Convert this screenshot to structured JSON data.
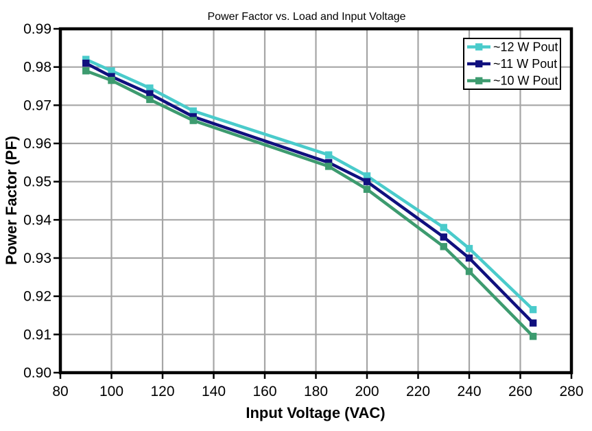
{
  "chart_data": {
    "type": "line",
    "title": "Power Factor vs. Load and Input Voltage",
    "xlabel": "Input Voltage (VAC)",
    "ylabel": "Power Factor (PF)",
    "xlim": [
      80,
      280
    ],
    "ylim": [
      0.9,
      0.99
    ],
    "x_ticks": [
      80,
      100,
      120,
      140,
      160,
      180,
      200,
      220,
      240,
      260,
      280
    ],
    "x_tick_labels": [
      "80",
      "100",
      "120",
      "140",
      "160",
      "180",
      "200",
      "220",
      "240",
      "260",
      "280"
    ],
    "y_ticks": [
      0.9,
      0.91,
      0.92,
      0.93,
      0.94,
      0.95,
      0.96,
      0.97,
      0.98,
      0.99
    ],
    "y_tick_labels": [
      "0.90",
      "0.91",
      "0.92",
      "0.93",
      "0.94",
      "0.95",
      "0.96",
      "0.97",
      "0.98",
      "0.99"
    ],
    "grid": true,
    "legend_position": "top-right",
    "x": [
      90,
      100,
      115,
      132,
      185,
      200,
      230,
      240,
      265
    ],
    "series": [
      {
        "name": "~12 W Pout",
        "color": "#4ACBCB",
        "values": [
          0.982,
          0.979,
          0.9745,
          0.9685,
          0.957,
          0.9515,
          0.938,
          0.9325,
          0.9165
        ]
      },
      {
        "name": "~11 W Pout",
        "color": "#10107E",
        "values": [
          0.981,
          0.9775,
          0.973,
          0.967,
          0.955,
          0.95,
          0.9355,
          0.93,
          0.913
        ]
      },
      {
        "name": "~10 W Pout",
        "color": "#3D9B6F",
        "values": [
          0.979,
          0.9765,
          0.9715,
          0.966,
          0.954,
          0.948,
          0.933,
          0.9265,
          0.9095
        ]
      }
    ],
    "colors": {
      "gridline": "#A5A5A5",
      "axis": "#000000",
      "background": "#FFFFFF",
      "legend_border": "#000000"
    }
  }
}
